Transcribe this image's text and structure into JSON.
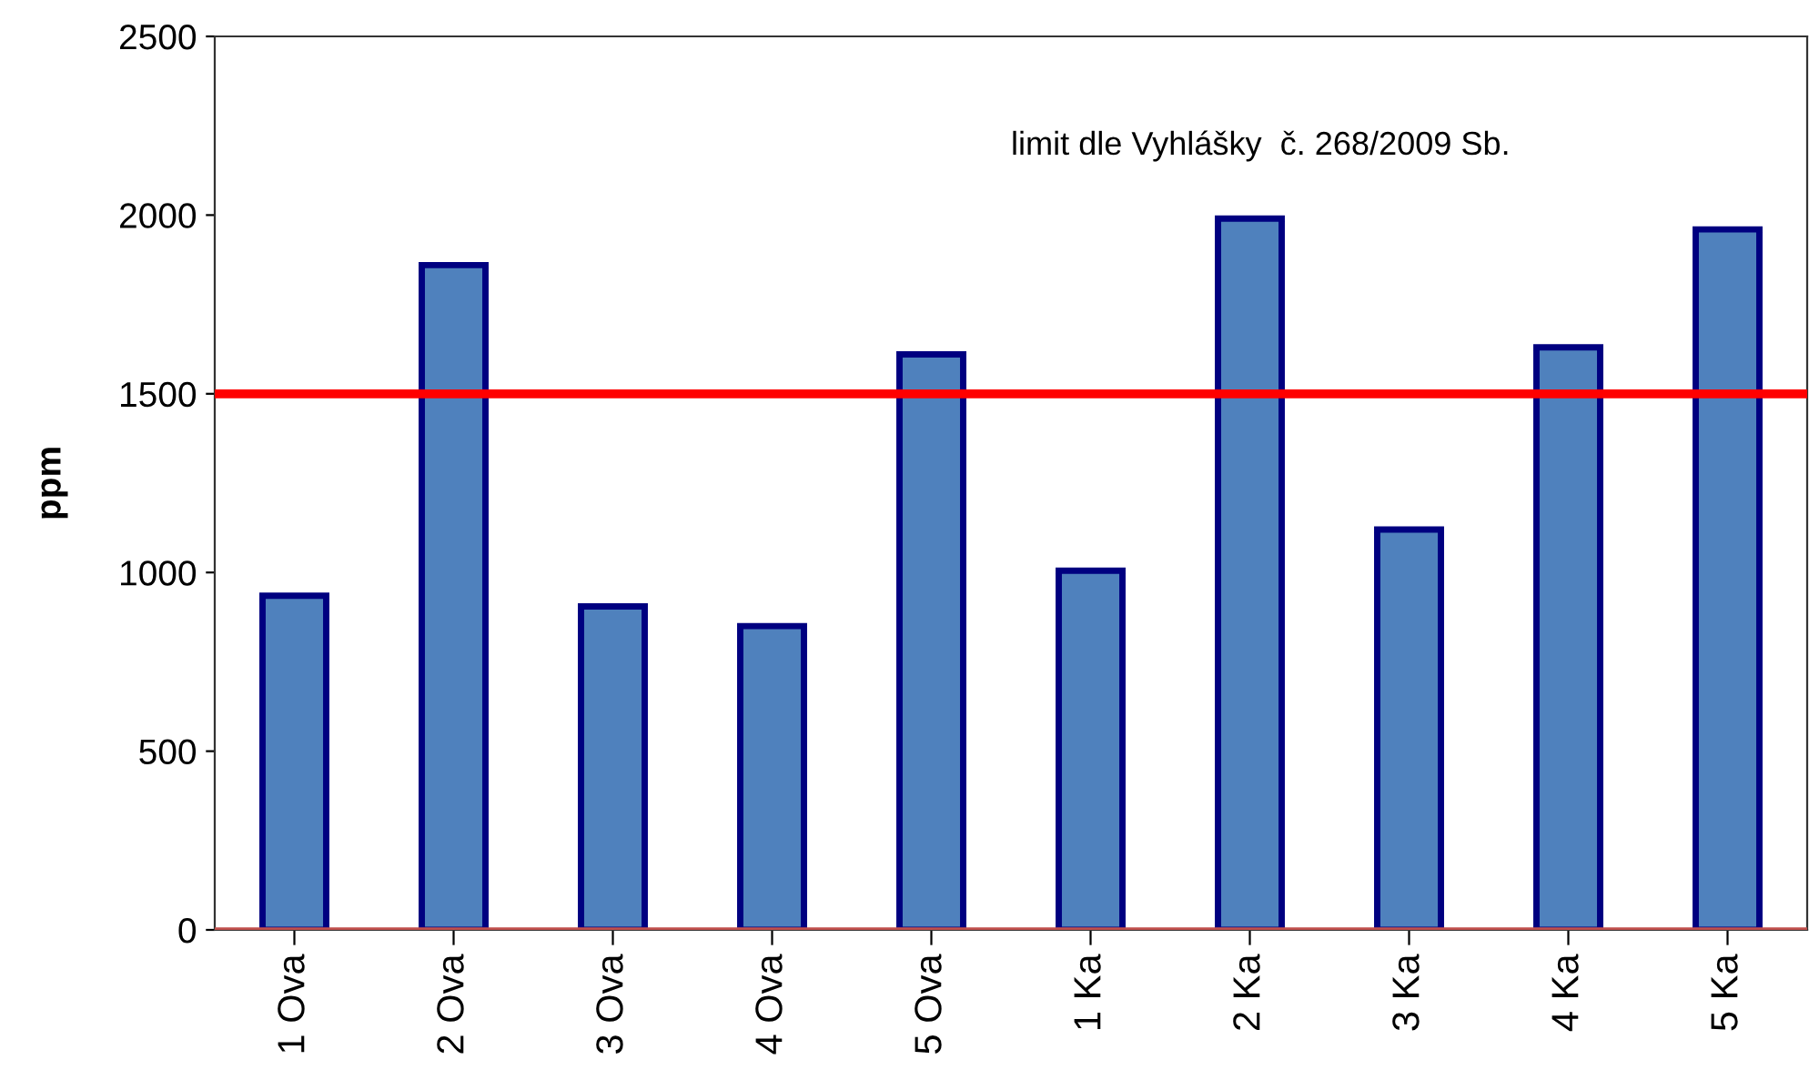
{
  "chart_data": {
    "type": "bar",
    "ylabel": "ppm",
    "categories": [
      "1 Ova",
      "2 Ova",
      "3 Ova",
      "4 Ova",
      "5 Ova",
      "1 Ka",
      "2 Ka",
      "3 Ka",
      "4 Ka",
      "5 Ka"
    ],
    "values": [
      935,
      1860,
      905,
      850,
      1610,
      1005,
      1990,
      1120,
      1630,
      1960
    ],
    "color": "#4f81bd",
    "ylim": [
      0,
      2500
    ],
    "yticks": [
      0,
      500,
      1000,
      1500,
      2000,
      2500
    ],
    "grid": false,
    "legend": false,
    "annotations": [
      "limit dle Vyhlášky  č. 268/2009 Sb."
    ],
    "ref_lines": [
      {
        "axis": "y",
        "value": 1500,
        "color": "#ff0000",
        "line_style": "solid"
      },
      {
        "axis": "y",
        "value": 0,
        "color": "#c0504d",
        "line_style": "solid"
      }
    ]
  }
}
